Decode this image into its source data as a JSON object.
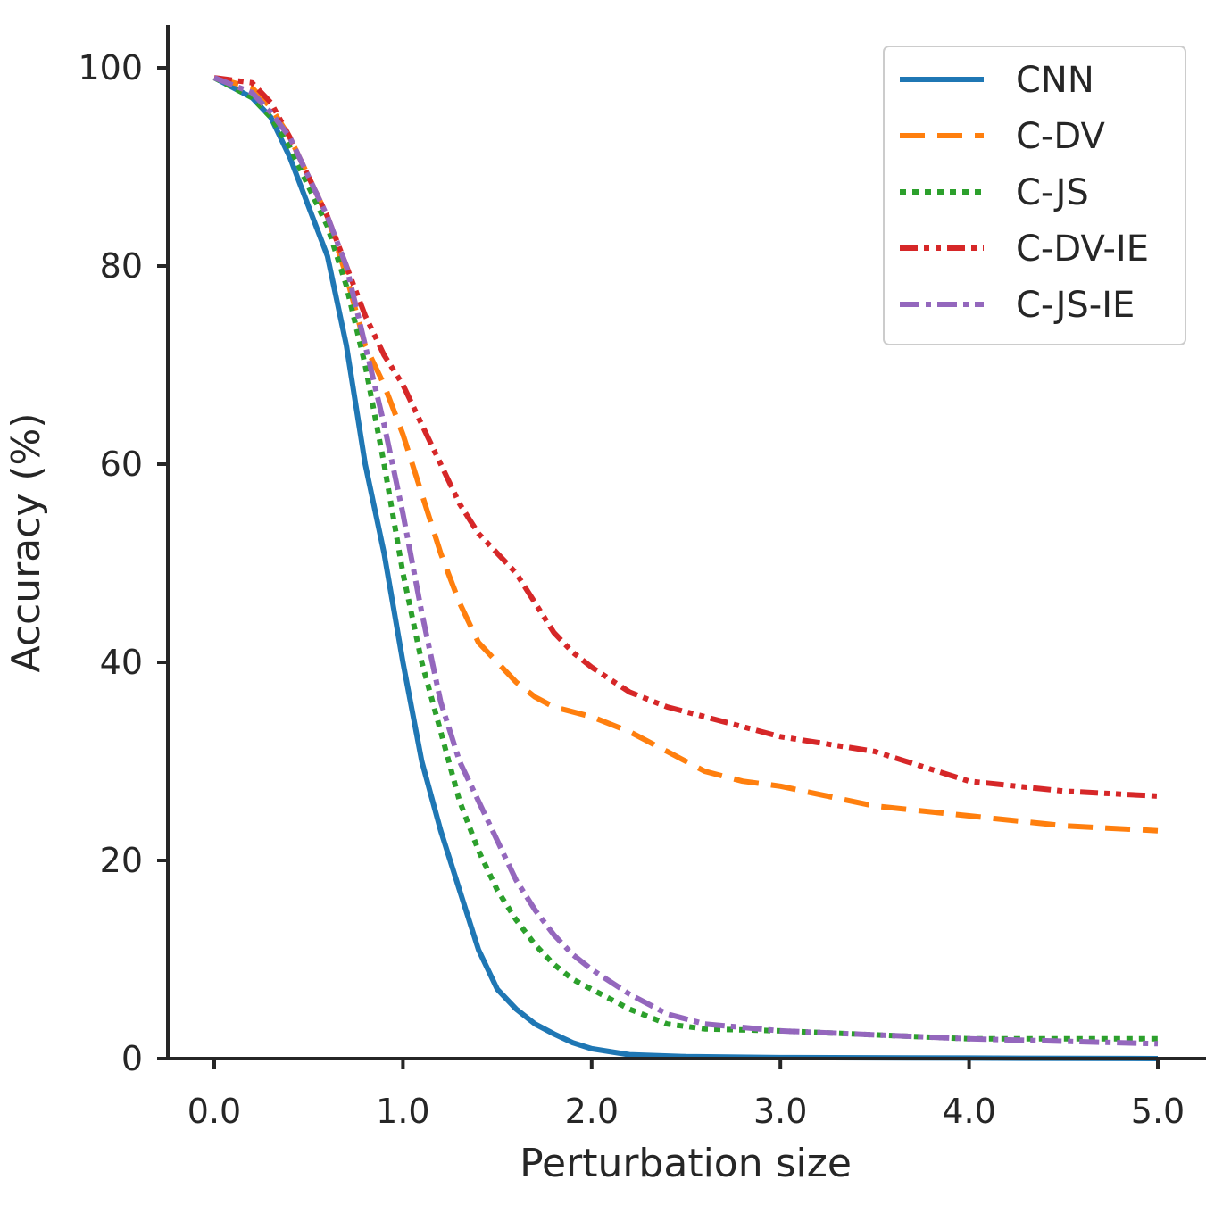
{
  "chart_data": {
    "type": "line",
    "title": "",
    "xlabel": "Perturbation size",
    "ylabel": "Accuracy (%)",
    "xlim": [
      -0.25,
      5.2
    ],
    "ylim": [
      0,
      104
    ],
    "xticks": [
      0,
      1,
      2,
      3,
      4,
      5
    ],
    "xtick_labels": [
      "0.0",
      "1.0",
      "2.0",
      "3.0",
      "4.0",
      "5.0"
    ],
    "yticks": [
      0,
      20,
      40,
      60,
      80,
      100
    ],
    "ytick_labels": [
      "0",
      "20",
      "40",
      "60",
      "80",
      "100"
    ],
    "grid": false,
    "legend_position": "top-right",
    "series": [
      {
        "name": "CNN",
        "color": "#1f77b4",
        "dash": "solid",
        "x": [
          0,
          0.2,
          0.3,
          0.4,
          0.5,
          0.6,
          0.7,
          0.8,
          0.9,
          1.0,
          1.1,
          1.2,
          1.3,
          1.4,
          1.5,
          1.6,
          1.7,
          1.8,
          1.9,
          2.0,
          2.2,
          2.5,
          3.0,
          4.0,
          5.0
        ],
        "y": [
          99,
          97,
          95,
          91,
          86,
          81,
          72,
          60,
          51,
          40,
          30,
          23,
          17,
          11,
          7,
          5,
          3.5,
          2.5,
          1.6,
          1.0,
          0.4,
          0.2,
          0.1,
          0.05,
          0
        ]
      },
      {
        "name": "C-DV",
        "color": "#ff7f0e",
        "dash": "28 14",
        "x": [
          0,
          0.2,
          0.3,
          0.4,
          0.5,
          0.6,
          0.7,
          0.8,
          0.9,
          1.0,
          1.1,
          1.2,
          1.3,
          1.4,
          1.5,
          1.6,
          1.7,
          1.8,
          2.0,
          2.2,
          2.4,
          2.6,
          2.8,
          3.0,
          3.5,
          4.0,
          4.5,
          5.0
        ],
        "y": [
          99,
          98,
          96,
          93,
          89,
          85,
          79,
          72,
          68,
          63,
          57,
          51,
          46,
          42,
          40,
          38,
          36.5,
          35.5,
          34.5,
          33,
          31,
          29,
          28,
          27.5,
          25.5,
          24.5,
          23.5,
          23
        ]
      },
      {
        "name": "C-JS",
        "color": "#2ca02c",
        "dash": "7 7",
        "x": [
          0,
          0.2,
          0.3,
          0.4,
          0.5,
          0.6,
          0.7,
          0.8,
          0.9,
          1.0,
          1.1,
          1.2,
          1.3,
          1.4,
          1.5,
          1.6,
          1.7,
          1.8,
          1.9,
          2.0,
          2.2,
          2.4,
          2.6,
          3.0,
          4.0,
          5.0
        ],
        "y": [
          99,
          97,
          95,
          92,
          88,
          84,
          78,
          70,
          60,
          49,
          40,
          33,
          26,
          21,
          17,
          14,
          11.5,
          9.5,
          8,
          7,
          5,
          3.5,
          3,
          2.8,
          2,
          2
        ]
      },
      {
        "name": "C-DV-IE",
        "color": "#d62728",
        "dash": "20 7 6 7 6 7",
        "x": [
          0,
          0.2,
          0.3,
          0.4,
          0.5,
          0.6,
          0.7,
          0.8,
          0.9,
          1.0,
          1.1,
          1.2,
          1.3,
          1.4,
          1.5,
          1.6,
          1.7,
          1.8,
          1.9,
          2.0,
          2.2,
          2.4,
          2.6,
          2.8,
          3.0,
          3.5,
          4.0,
          4.5,
          5.0
        ],
        "y": [
          99,
          98.5,
          96.5,
          93,
          89,
          85,
          80,
          75,
          71,
          68,
          64,
          60,
          56,
          53,
          51,
          49,
          46,
          43,
          41,
          39.5,
          37,
          35.5,
          34.5,
          33.5,
          32.5,
          31,
          28,
          27,
          26.5
        ]
      },
      {
        "name": "C-JS-IE",
        "color": "#9467bd",
        "dash": "22 7 6 7",
        "x": [
          0,
          0.2,
          0.3,
          0.4,
          0.5,
          0.6,
          0.7,
          0.8,
          0.9,
          1.0,
          1.1,
          1.2,
          1.3,
          1.4,
          1.5,
          1.6,
          1.7,
          1.8,
          1.9,
          2.0,
          2.2,
          2.4,
          2.6,
          3.0,
          4.0,
          5.0
        ],
        "y": [
          99,
          97.5,
          95.5,
          93,
          89,
          85,
          80,
          72,
          64,
          55,
          45,
          36,
          30,
          26,
          22,
          18,
          15,
          12.5,
          10.5,
          9,
          6.5,
          4.5,
          3.5,
          2.8,
          2.0,
          1.5
        ]
      }
    ]
  }
}
